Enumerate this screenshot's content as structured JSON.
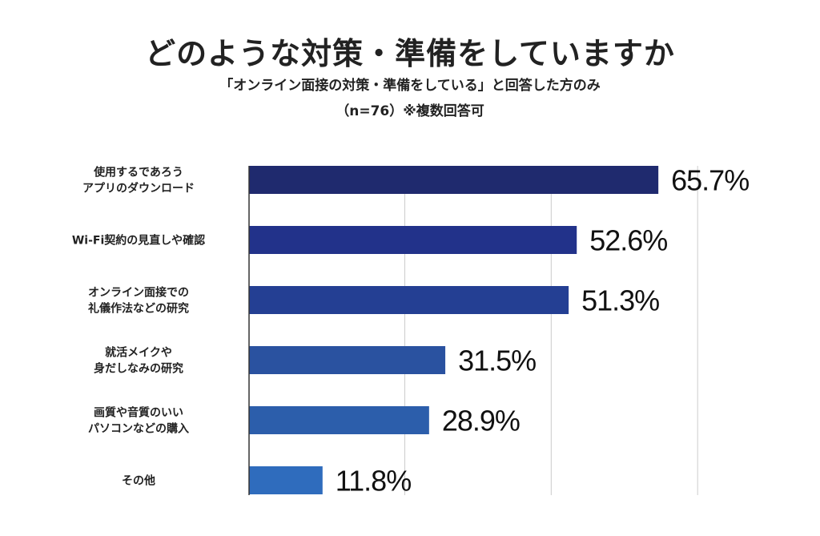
{
  "header": {
    "title": "どのような対策・準備をしていますか",
    "subtitle": "「オンライン面接の対策・準備をしている」と回答した方のみ",
    "note": "（n=76）※複数回答可"
  },
  "chart_data": {
    "type": "bar",
    "orientation": "horizontal",
    "title": "どのような対策・準備をしていますか",
    "categories": [
      [
        "使用するであろう",
        "アプリのダウンロード"
      ],
      [
        "Wi-Fi契約の見直しや確認"
      ],
      [
        "オンライン面接での",
        "礼儀作法などの研究"
      ],
      [
        "就活メイクや",
        "身だしなみの研究"
      ],
      [
        "画質や音質のいい",
        "パソコンなどの購入"
      ],
      [
        "その他"
      ]
    ],
    "values": [
      65.7,
      52.6,
      51.3,
      31.5,
      28.9,
      11.8
    ],
    "value_labels": [
      "65.7%",
      "52.6%",
      "51.3%",
      "31.5%",
      "28.9%",
      "11.8%"
    ],
    "colors": [
      "#1f2a6e",
      "#22328a",
      "#243f93",
      "#2a52a0",
      "#2c5eab",
      "#2f6cbd"
    ],
    "xlim": [
      0,
      75
    ],
    "gridlines": [
      25,
      48.5,
      72
    ],
    "grid_color": "#cccccc",
    "xlabel": "",
    "ylabel": ""
  }
}
